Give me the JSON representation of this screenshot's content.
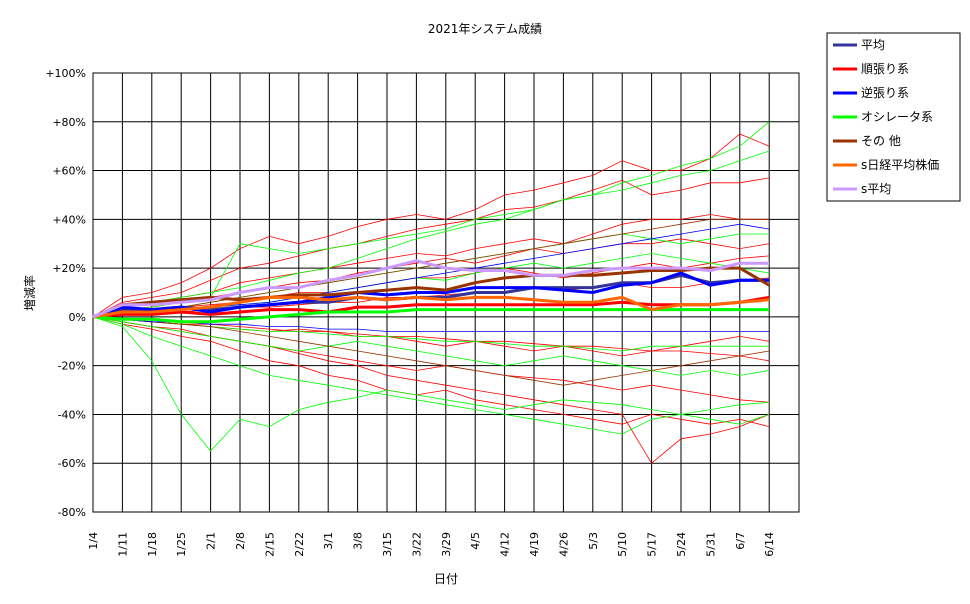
{
  "chart_data": {
    "type": "line",
    "title": "2021年システム成績",
    "xlabel": "日付",
    "ylabel": "増減率",
    "ylim": [
      -80,
      100
    ],
    "yticks": [
      -80,
      -60,
      -40,
      -20,
      0,
      20,
      40,
      60,
      80,
      100
    ],
    "ytick_labels": [
      "-80%",
      "-60%",
      "-40%",
      "-20%",
      "0%",
      "+20%",
      "+40%",
      "+60%",
      "+80%",
      "+100%"
    ],
    "categories": [
      "1/4",
      "1/11",
      "1/18",
      "1/25",
      "2/1",
      "2/8",
      "2/15",
      "2/22",
      "3/1",
      "3/8",
      "3/15",
      "3/22",
      "3/29",
      "4/5",
      "4/12",
      "4/19",
      "4/26",
      "5/3",
      "5/10",
      "5/17",
      "5/24",
      "5/31",
      "6/7",
      "6/14"
    ],
    "grid": true,
    "legend_position": "right",
    "legend": [
      {
        "label": "平均",
        "color": "#333399"
      },
      {
        "label": "順張り系",
        "color": "#ff0000"
      },
      {
        "label": "逆張り系",
        "color": "#0000ff"
      },
      {
        "label": "オシレータ系",
        "color": "#00ff00"
      },
      {
        "label": "その 他",
        "color": "#993300"
      },
      {
        "label": "s日経平均株価",
        "color": "#ff6600"
      },
      {
        "label": "s平均",
        "color": "#cc99ff"
      }
    ],
    "series": [
      {
        "name": "平均",
        "color": "#333399",
        "values": [
          0,
          3,
          3,
          4,
          3,
          4,
          5,
          6,
          6,
          8,
          7,
          8,
          8,
          10,
          10,
          12,
          12,
          12,
          14,
          14,
          17,
          14,
          15,
          15
        ]
      },
      {
        "name": "順張り系",
        "color": "#ff0000",
        "values": [
          0,
          1,
          1,
          2,
          1,
          2,
          3,
          3,
          2,
          4,
          4,
          5,
          5,
          5,
          5,
          5,
          5,
          5,
          6,
          5,
          5,
          5,
          6,
          8
        ]
      },
      {
        "name": "逆張り系",
        "color": "#0000ff",
        "values": [
          0,
          4,
          3,
          4,
          2,
          4,
          5,
          6,
          8,
          10,
          9,
          10,
          10,
          12,
          12,
          12,
          11,
          10,
          13,
          14,
          18,
          13,
          15,
          15
        ]
      },
      {
        "name": "オシレータ系",
        "color": "#00ff00",
        "values": [
          0,
          -1,
          -1,
          -2,
          -2,
          -1,
          0,
          1,
          2,
          2,
          2,
          3,
          3,
          3,
          3,
          3,
          3,
          3,
          3,
          3,
          3,
          3,
          3,
          3
        ]
      },
      {
        "name": "その 他",
        "color": "#993300",
        "values": [
          0,
          5,
          6,
          7,
          8,
          7,
          8,
          9,
          9,
          10,
          11,
          12,
          11,
          14,
          16,
          17,
          17,
          17,
          18,
          19,
          19,
          20,
          20,
          13
        ]
      },
      {
        "name": "s日経平均株価",
        "color": "#ff6600",
        "values": [
          0,
          2,
          2,
          3,
          4,
          6,
          8,
          8,
          7,
          8,
          7,
          8,
          7,
          8,
          8,
          7,
          6,
          6,
          8,
          3,
          5,
          5,
          6,
          7
        ]
      },
      {
        "name": "s平均",
        "color": "#cc99ff",
        "values": [
          0,
          5,
          5,
          6,
          7,
          10,
          12,
          12,
          15,
          17,
          20,
          23,
          20,
          19,
          19,
          17,
          17,
          19,
          20,
          20,
          20,
          19,
          22,
          22
        ]
      }
    ],
    "thin_series": [
      {
        "color": "#ff0000",
        "values": [
          0,
          8,
          10,
          14,
          20,
          28,
          33,
          30,
          33,
          37,
          40,
          42,
          40,
          44,
          50,
          52,
          55,
          58,
          64,
          60,
          60,
          65,
          75,
          70
        ]
      },
      {
        "color": "#ff0000",
        "values": [
          0,
          6,
          8,
          10,
          15,
          20,
          22,
          25,
          28,
          30,
          33,
          36,
          38,
          40,
          44,
          45,
          48,
          52,
          56,
          50,
          52,
          55,
          55,
          57
        ]
      },
      {
        "color": "#ff0000",
        "values": [
          0,
          5,
          6,
          8,
          10,
          14,
          16,
          18,
          20,
          22,
          24,
          26,
          25,
          28,
          30,
          32,
          30,
          34,
          38,
          40,
          40,
          42,
          40,
          40
        ]
      },
      {
        "color": "#ff0000",
        "values": [
          0,
          3,
          4,
          6,
          8,
          10,
          12,
          14,
          15,
          18,
          20,
          22,
          24,
          22,
          25,
          28,
          26,
          28,
          30,
          30,
          32,
          30,
          28,
          30
        ]
      },
      {
        "color": "#ff0000",
        "values": [
          0,
          2,
          3,
          4,
          5,
          6,
          8,
          10,
          10,
          12,
          14,
          16,
          16,
          18,
          20,
          18,
          16,
          18,
          20,
          22,
          20,
          22,
          24,
          25
        ]
      },
      {
        "color": "#ff0000",
        "values": [
          0,
          1,
          2,
          2,
          3,
          4,
          4,
          5,
          6,
          6,
          8,
          8,
          9,
          10,
          10,
          12,
          11,
          12,
          14,
          12,
          12,
          14,
          15,
          16
        ]
      },
      {
        "color": "#ff0000",
        "values": [
          0,
          -1,
          -2,
          -3,
          -4,
          -5,
          -6,
          -5,
          -6,
          -8,
          -8,
          -10,
          -12,
          -10,
          -12,
          -14,
          -12,
          -14,
          -16,
          -14,
          -12,
          -10,
          -8,
          -10
        ]
      },
      {
        "color": "#ff0000",
        "values": [
          0,
          -2,
          -4,
          -5,
          -8,
          -10,
          -12,
          -14,
          -16,
          -18,
          -20,
          -22,
          -20,
          -22,
          -24,
          -25,
          -26,
          -28,
          -30,
          -28,
          -30,
          -32,
          -34,
          -35
        ]
      },
      {
        "color": "#ff0000",
        "values": [
          0,
          -3,
          -5,
          -8,
          -10,
          -14,
          -18,
          -20,
          -24,
          -26,
          -30,
          -32,
          -30,
          -34,
          -36,
          -38,
          -40,
          -42,
          -44,
          -40,
          -42,
          -44,
          -42,
          -45
        ]
      },
      {
        "color": "#ff0000",
        "values": [
          0,
          -2,
          -4,
          -6,
          -8,
          -10,
          -12,
          -15,
          -18,
          -20,
          -24,
          -26,
          -28,
          -30,
          -32,
          -34,
          -36,
          -38,
          -40,
          -60,
          -50,
          -48,
          -45,
          -40
        ]
      },
      {
        "color": "#ff0000",
        "values": [
          0,
          -1,
          -2,
          -3,
          -3,
          -4,
          -5,
          -6,
          -6,
          -7,
          -8,
          -8,
          -9,
          -10,
          -10,
          -11,
          -12,
          -12,
          -13,
          -14,
          -14,
          -15,
          -16,
          -18
        ]
      },
      {
        "color": "#00ff00",
        "values": [
          0,
          4,
          6,
          8,
          10,
          12,
          15,
          18,
          20,
          24,
          28,
          32,
          35,
          38,
          40,
          44,
          48,
          50,
          55,
          58,
          62,
          65,
          70,
          80
        ]
      },
      {
        "color": "#00ff00",
        "values": [
          0,
          3,
          4,
          6,
          8,
          30,
          28,
          26,
          28,
          30,
          32,
          34,
          36,
          40,
          42,
          44,
          48,
          50,
          52,
          55,
          58,
          60,
          64,
          68
        ]
      },
      {
        "color": "#00ff00",
        "values": [
          0,
          2,
          3,
          4,
          6,
          8,
          10,
          12,
          14,
          16,
          18,
          20,
          22,
          24,
          26,
          28,
          30,
          32,
          34,
          32,
          30,
          32,
          34,
          34
        ]
      },
      {
        "color": "#00ff00",
        "values": [
          0,
          1,
          2,
          3,
          4,
          5,
          6,
          8,
          10,
          12,
          14,
          16,
          15,
          18,
          20,
          22,
          20,
          22,
          24,
          26,
          24,
          22,
          20,
          18
        ]
      },
      {
        "color": "#00ff00",
        "values": [
          0,
          -2,
          -4,
          -6,
          -8,
          -10,
          -12,
          -14,
          -12,
          -10,
          -12,
          -14,
          -16,
          -18,
          -20,
          -18,
          -16,
          -18,
          -20,
          -22,
          -24,
          -22,
          -24,
          -22
        ]
      },
      {
        "color": "#00ff00",
        "values": [
          0,
          -4,
          -18,
          -40,
          -55,
          -42,
          -45,
          -38,
          -35,
          -33,
          -30,
          -32,
          -34,
          -36,
          -38,
          -36,
          -34,
          -35,
          -36,
          -38,
          -40,
          -42,
          -44,
          -40
        ]
      },
      {
        "color": "#00ff00",
        "values": [
          0,
          -3,
          -8,
          -12,
          -16,
          -20,
          -24,
          -26,
          -28,
          -30,
          -32,
          -34,
          -36,
          -38,
          -40,
          -42,
          -44,
          -46,
          -48,
          -42,
          -40,
          -38,
          -36,
          -35
        ]
      },
      {
        "color": "#00ff00",
        "values": [
          0,
          -1,
          -2,
          -3,
          -4,
          -5,
          -6,
          -6,
          -7,
          -8,
          -8,
          -9,
          -10,
          -10,
          -11,
          -12,
          -12,
          -13,
          -14,
          -12,
          -12,
          -12,
          -12,
          -12
        ]
      },
      {
        "color": "#993300",
        "values": [
          0,
          2,
          3,
          4,
          6,
          8,
          10,
          12,
          14,
          16,
          18,
          20,
          22,
          24,
          26,
          28,
          30,
          32,
          34,
          36,
          38,
          40,
          40,
          40
        ]
      },
      {
        "color": "#993300",
        "values": [
          0,
          -1,
          -2,
          -3,
          -4,
          -6,
          -8,
          -10,
          -12,
          -14,
          -16,
          -18,
          -20,
          -22,
          -24,
          -26,
          -28,
          -26,
          -24,
          -22,
          -20,
          -18,
          -16,
          -14
        ]
      },
      {
        "color": "#0000ff",
        "values": [
          0,
          1,
          2,
          3,
          4,
          5,
          6,
          8,
          10,
          12,
          14,
          16,
          18,
          20,
          22,
          24,
          26,
          28,
          30,
          32,
          34,
          36,
          38,
          36
        ]
      },
      {
        "color": "#0000ff",
        "values": [
          0,
          -1,
          -2,
          -2,
          -3,
          -3,
          -4,
          -4,
          -5,
          -5,
          -6,
          -6,
          -6,
          -6,
          -6,
          -6,
          -6,
          -6,
          -6,
          -6,
          -6,
          -6,
          -6,
          -6
        ]
      }
    ]
  }
}
